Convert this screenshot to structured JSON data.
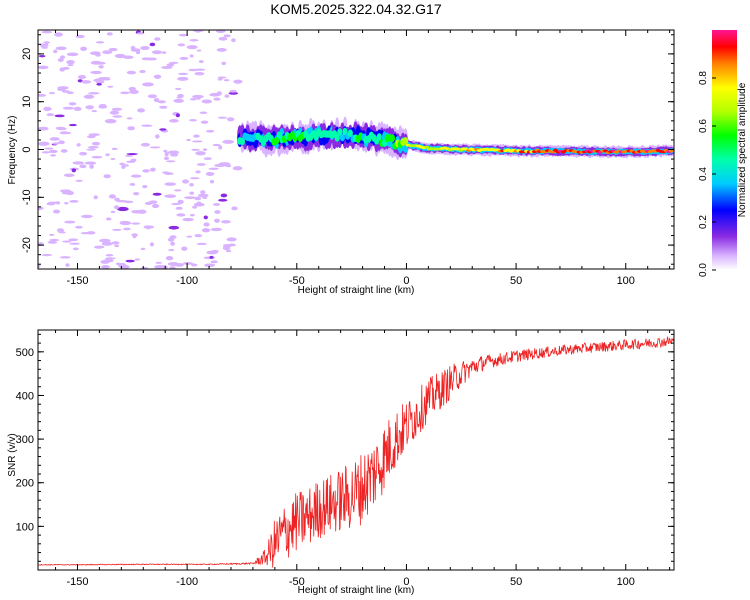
{
  "title": "KOM5.2025.322.04.32.G17",
  "chart_data": [
    {
      "type": "heatmap",
      "title": "KOM5.2025.322.04.32.G17",
      "xlabel": "Height of straight line (km)",
      "ylabel": "Frequency (Hz)",
      "xlim": [
        -168,
        122
      ],
      "ylim": [
        -25,
        25
      ],
      "xticks": [
        -150,
        -100,
        -50,
        0,
        50,
        100
      ],
      "yticks": [
        -20,
        -10,
        0,
        10,
        20
      ],
      "xtick_labels": [
        "-150",
        "-100",
        "-50",
        "0",
        "50",
        "100"
      ],
      "ytick_labels": [
        "-20",
        "-10",
        "0",
        "10",
        "20"
      ],
      "colorbar": {
        "label": "Normalized spectral amplitude",
        "range": [
          0,
          1
        ],
        "ticks": [
          0.0,
          0.2,
          0.4,
          0.6,
          0.8
        ],
        "tick_labels": [
          "0.0",
          "0.2",
          "0.4",
          "0.6",
          "0.8"
        ]
      },
      "signal_ridge": {
        "description_points": [
          {
            "x": -76,
            "freq": 2.5,
            "amp": 0.45
          },
          {
            "x": -60,
            "freq": 2.2,
            "amp": 0.55
          },
          {
            "x": -45,
            "freq": 2.6,
            "amp": 0.55
          },
          {
            "x": -30,
            "freq": 3.2,
            "amp": 0.5
          },
          {
            "x": -20,
            "freq": 2.8,
            "amp": 0.5
          },
          {
            "x": -10,
            "freq": 2.0,
            "amp": 0.55
          },
          {
            "x": 0,
            "freq": 1.0,
            "amp": 0.7
          },
          {
            "x": 10,
            "freq": 0.3,
            "amp": 0.75
          },
          {
            "x": 25,
            "freq": 0.0,
            "amp": 0.8
          },
          {
            "x": 50,
            "freq": -0.3,
            "amp": 0.9
          },
          {
            "x": 75,
            "freq": -0.4,
            "amp": 0.95
          },
          {
            "x": 100,
            "freq": -0.5,
            "amp": 0.95
          },
          {
            "x": 122,
            "freq": -0.3,
            "amp": 0.95
          }
        ]
      }
    },
    {
      "type": "line",
      "xlabel": "Height of straight line (km)",
      "ylabel": "SNR (v/v)",
      "xlim": [
        -168,
        122
      ],
      "ylim": [
        0,
        550
      ],
      "xticks": [
        -150,
        -100,
        -50,
        0,
        50,
        100
      ],
      "yticks": [
        100,
        200,
        300,
        400,
        500
      ],
      "xtick_labels": [
        "-150",
        "-100",
        "-50",
        "0",
        "50",
        "100"
      ],
      "ytick_labels": [
        "100",
        "200",
        "300",
        "400",
        "500"
      ],
      "series": [
        {
          "name": "SNR",
          "color": "#ee2222",
          "x": [
            -168,
            -150,
            -120,
            -90,
            -70,
            -64,
            -60,
            -55,
            -50,
            -45,
            -40,
            -35,
            -30,
            -25,
            -20,
            -15,
            -10,
            -5,
            0,
            5,
            10,
            15,
            20,
            25,
            30,
            35,
            40,
            50,
            60,
            70,
            80,
            90,
            100,
            110,
            122
          ],
          "y": [
            12,
            12,
            13,
            13,
            15,
            30,
            60,
            90,
            110,
            120,
            140,
            150,
            160,
            170,
            190,
            220,
            260,
            300,
            330,
            360,
            390,
            410,
            430,
            450,
            465,
            475,
            480,
            490,
            497,
            503,
            508,
            512,
            516,
            520,
            525
          ],
          "noise": [
            1,
            1,
            1,
            1,
            2,
            20,
            60,
            70,
            70,
            70,
            70,
            70,
            75,
            80,
            85,
            85,
            80,
            70,
            60,
            55,
            50,
            45,
            40,
            30,
            22,
            18,
            15,
            14,
            13,
            12,
            12,
            12,
            12,
            12,
            12
          ]
        }
      ]
    }
  ]
}
